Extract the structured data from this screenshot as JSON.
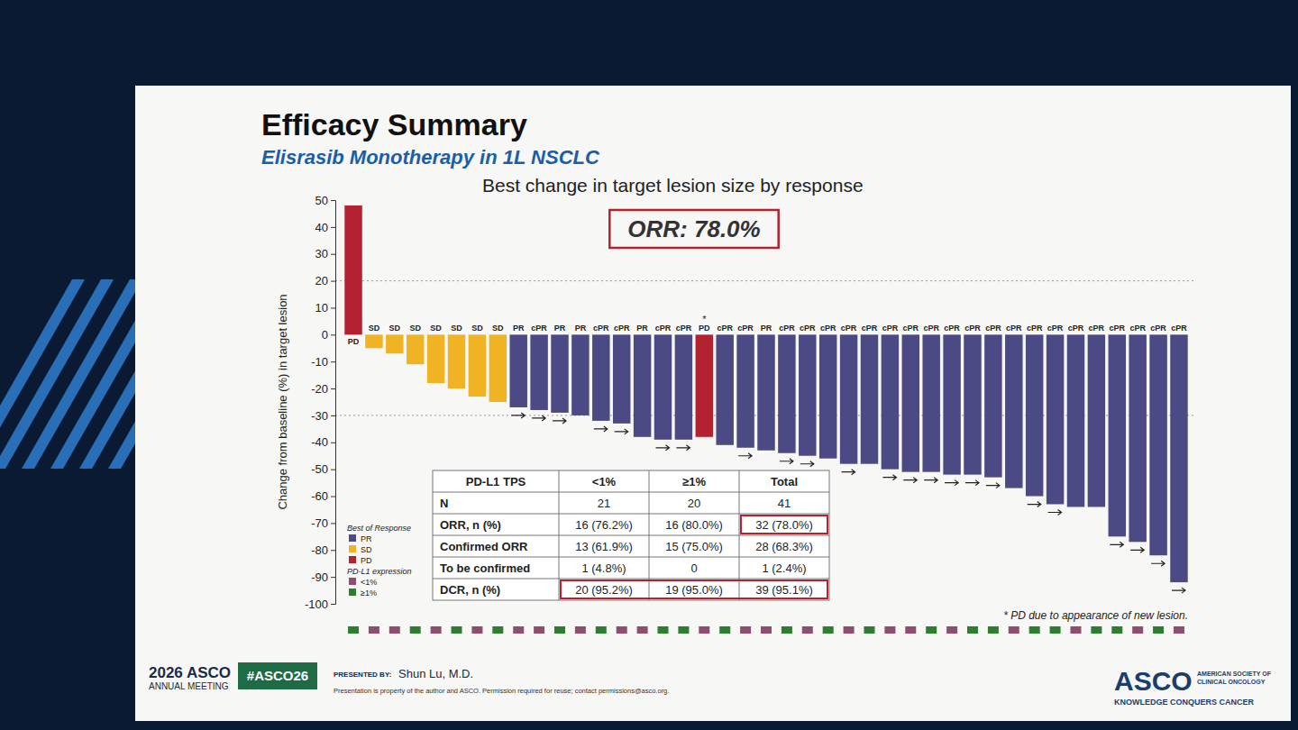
{
  "chart_data": {
    "type": "bar",
    "title": "Best change in target lesion size by response",
    "y_label": "Change from baseline (%) in target lesion",
    "annotation": "ORR: 78.0%",
    "footnote": "* PD due to appearance of new lesion.",
    "note_mark": {
      "text": "*",
      "bar": 17
    },
    "categories": [
      null,
      null,
      null,
      null,
      null,
      null,
      null,
      null,
      null,
      null,
      null,
      null,
      null,
      null,
      null,
      null,
      null,
      null,
      null,
      null,
      null,
      null,
      null,
      null,
      null,
      null,
      null,
      null,
      null,
      null,
      null,
      null,
      null,
      null,
      null,
      null,
      null,
      null,
      null,
      null,
      null
    ],
    "values": [
      48,
      -5,
      -7,
      -11,
      -18,
      -20,
      -23,
      -25,
      -27,
      -28,
      -29,
      -30,
      -32,
      -33,
      -38,
      -39,
      -39,
      -38,
      -41,
      -42,
      -43,
      -44,
      -45,
      -46,
      -48,
      -48,
      -50,
      -51,
      -51,
      -52,
      -52,
      -53,
      -57,
      -60,
      -63,
      -64,
      -64,
      -75,
      -77,
      -82,
      -92
    ],
    "bar_labels": [
      "PD",
      "SD",
      "SD",
      "SD",
      "SD",
      "SD",
      "SD",
      "SD",
      "PR",
      "cPR",
      "PR",
      "PR",
      "cPR",
      "cPR",
      "PR",
      "cPR",
      "cPR",
      "PD",
      "cPR",
      "cPR",
      "PR",
      "cPR",
      "cPR",
      "cPR",
      "cPR",
      "cPR",
      "cPR",
      "cPR",
      "cPR",
      "cPR",
      "cPR",
      "cPR",
      "cPR",
      "cPR",
      "cPR",
      "cPR",
      "cPR",
      "cPR",
      "cPR",
      "cPR",
      "cPR"
    ],
    "colors": [
      "#b22230",
      "#f0b323",
      "#f0b323",
      "#f0b323",
      "#f0b323",
      "#f0b323",
      "#f0b323",
      "#f0b323",
      "#4b4a85",
      "#4b4a85",
      "#4b4a85",
      "#4b4a85",
      "#4b4a85",
      "#4b4a85",
      "#4b4a85",
      "#4b4a85",
      "#4b4a85",
      "#b22230",
      "#4b4a85",
      "#4b4a85",
      "#4b4a85",
      "#4b4a85",
      "#4b4a85",
      "#4b4a85",
      "#4b4a85",
      "#4b4a85",
      "#4b4a85",
      "#4b4a85",
      "#4b4a85",
      "#4b4a85",
      "#4b4a85",
      "#4b4a85",
      "#4b4a85",
      "#4b4a85",
      "#4b4a85",
      "#4b4a85",
      "#4b4a85",
      "#4b4a85",
      "#4b4a85",
      "#4b4a85",
      "#4b4a85"
    ],
    "ongoing": [
      false,
      false,
      false,
      false,
      false,
      false,
      false,
      false,
      true,
      true,
      true,
      false,
      true,
      true,
      false,
      true,
      true,
      false,
      false,
      true,
      false,
      true,
      true,
      false,
      true,
      false,
      true,
      true,
      true,
      true,
      true,
      true,
      false,
      true,
      true,
      false,
      false,
      true,
      true,
      true,
      true
    ],
    "pdl1": [
      "≥1%",
      "<1%",
      "<1%",
      "≥1%",
      "<1%",
      "≥1%",
      "<1%",
      "≥1%",
      "<1%",
      "<1%",
      "≥1%",
      "<1%",
      "≥1%",
      "<1%",
      "<1%",
      "≥1%",
      "≥1%",
      "<1%",
      "≥1%",
      "<1%",
      "<1%",
      "≥1%",
      "<1%",
      "≥1%",
      "<1%",
      "≥1%",
      "<1%",
      "<1%",
      "≥1%",
      "<1%",
      "≥1%",
      "≥1%",
      "<1%",
      "≥1%",
      "≥1%",
      "<1%",
      "≥1%",
      "≥1%",
      "<1%",
      "≥1%",
      "<1%"
    ],
    "reference_lines": [
      20,
      -30
    ],
    "ylim": [
      -100,
      50
    ],
    "yticks": [
      -100,
      -90,
      -80,
      -70,
      -60,
      -50,
      -40,
      -30,
      -20,
      -10,
      0,
      10,
      20,
      30,
      40,
      50
    ],
    "grid": false,
    "legend": "lower left",
    "legend_groups": [
      {
        "title": "Best of Response",
        "items": [
          {
            "name": "PR",
            "color": "#4b4a85"
          },
          {
            "name": "SD",
            "color": "#f0b323"
          },
          {
            "name": "PD",
            "color": "#b22230"
          }
        ]
      },
      {
        "title": "PD-L1 expression",
        "items": [
          {
            "name": "<1%",
            "color": "#8e4f6e"
          },
          {
            "name": "≥1%",
            "color": "#2e7d32"
          }
        ]
      }
    ]
  },
  "slide": {
    "title": "Efficacy Summary",
    "subtitle": "Elisrasib Monotherapy in 1L NSCLC",
    "footer": {
      "meeting": "2026 ASCO",
      "meeting_sub": "ANNUAL MEETING",
      "hashtag": "#ASCO26",
      "presented_by": "PRESENTED BY:",
      "presenter": "Shun Lu, M.D.",
      "permission": "Presentation is property of the author and ASCO. Permission required for reuse; contact permissions@asco.org.",
      "logo": "ASCO",
      "logo_lines": [
        "AMERICAN SOCIETY OF",
        "CLINICAL ONCOLOGY"
      ],
      "tagline": "KNOWLEDGE CONQUERS CANCER"
    }
  },
  "table": {
    "header": [
      "PD-L1 TPS",
      "<1%",
      "≥1%",
      "Total"
    ],
    "rows": [
      [
        "N",
        "21",
        "20",
        "41"
      ],
      [
        "ORR, n (%)",
        "16 (76.2%)",
        "16 (80.0%)",
        "32 (78.0%)"
      ],
      [
        "Confirmed ORR",
        "13 (61.9%)",
        "15 (75.0%)",
        "28 (68.3%)"
      ],
      [
        "To be confirmed",
        "1 (4.8%)",
        "0",
        "1 (2.4%)"
      ],
      [
        "DCR, n (%)",
        "20 (95.2%)",
        "19 (95.0%)",
        "39 (95.1%)"
      ]
    ]
  }
}
